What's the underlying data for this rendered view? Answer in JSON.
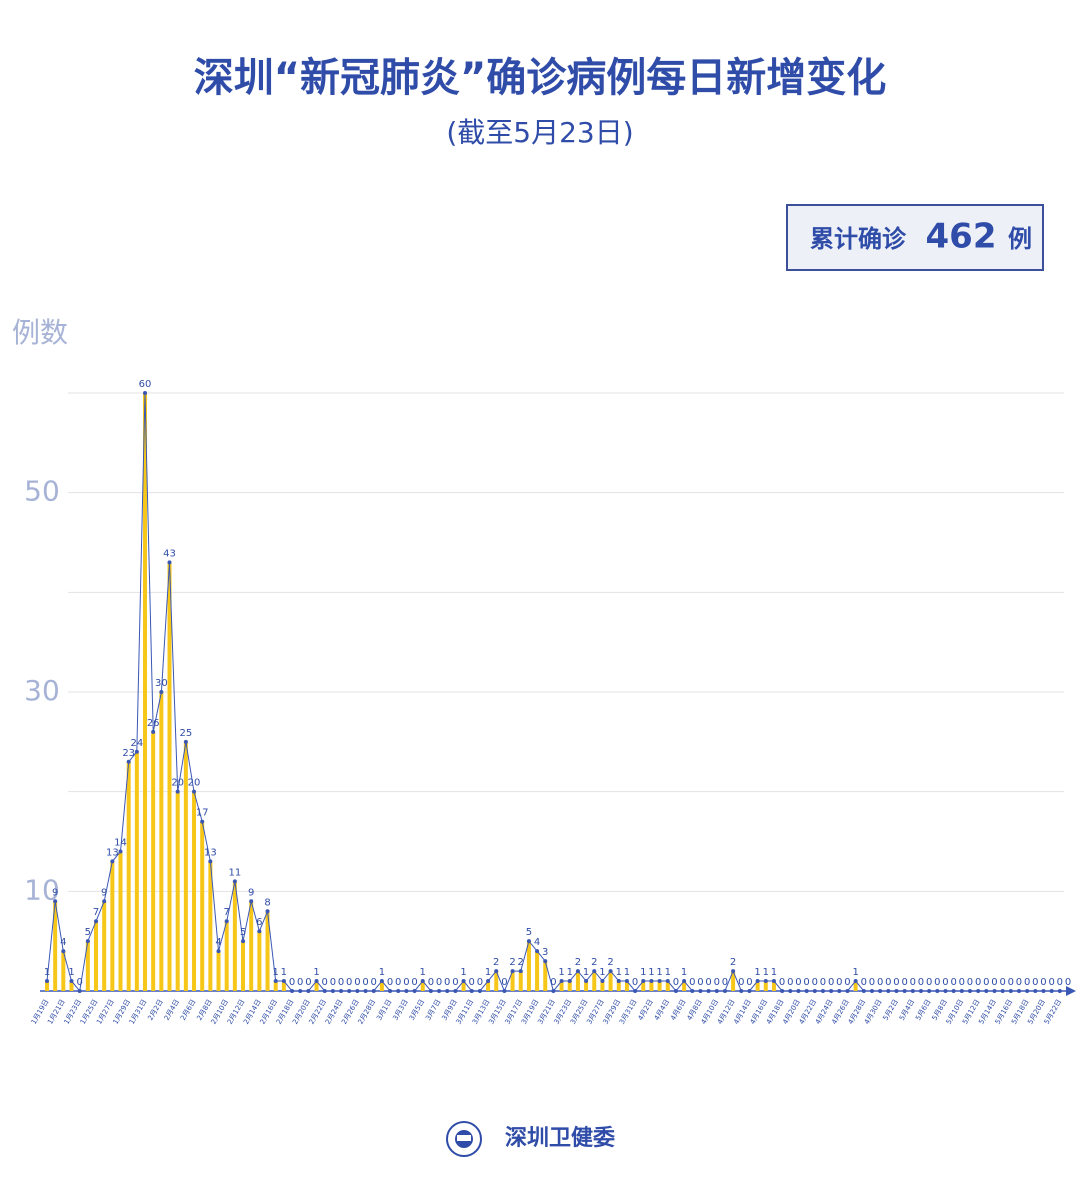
{
  "header": {
    "title": "深圳“新冠肺炎”确诊病例每日新增变化",
    "subtitle": "(截至5月23日)",
    "total_prefix": "累计确诊",
    "total": 462,
    "total_suffix": "例"
  },
  "chart_data": {
    "type": "bar",
    "ylabel": "例数",
    "color": "#f6c619",
    "line": true,
    "line_color": "#3a57b4",
    "value_label_color": "#2f4ca8",
    "categories": [
      "1月19日",
      null,
      "1月21日",
      null,
      "1月23日",
      null,
      "1月25日",
      null,
      "1月27日",
      null,
      "1月29日",
      null,
      "1月31日",
      null,
      "2月2日",
      null,
      "2月4日",
      null,
      "2月6日",
      null,
      "2月8日",
      null,
      "2月10日",
      null,
      "2月12日",
      null,
      "2月14日",
      null,
      "2月16日",
      null,
      "2月18日",
      null,
      "2月20日",
      null,
      "2月22日",
      null,
      "2月24日",
      null,
      "2月26日",
      null,
      "2月28日",
      null,
      "3月1日",
      null,
      "3月3日",
      null,
      "3月5日",
      null,
      "3月7日",
      null,
      "3月9日",
      null,
      "3月11日",
      null,
      "3月13日",
      null,
      "3月15日",
      null,
      "3月17日",
      null,
      "3月19日",
      null,
      "3月21日",
      null,
      "3月23日",
      null,
      "3月25日",
      null,
      "3月27日",
      null,
      "3月29日",
      null,
      "3月31日",
      null,
      "4月2日",
      null,
      "4月4日",
      null,
      "4月6日",
      null,
      "4月8日",
      null,
      "4月10日",
      null,
      "4月12日",
      null,
      "4月14日",
      null,
      "4月16日",
      null,
      "4月18日",
      null,
      "4月20日",
      null,
      "4月22日",
      null,
      "4月24日",
      null,
      "4月26日",
      null,
      "4月28日",
      null,
      "4月30日",
      null,
      "5月2日",
      null,
      "5月4日",
      null,
      "5月6日",
      null,
      "5月8日",
      null,
      "5月10日",
      null,
      "5月12日",
      null,
      "5月14日",
      null,
      "5月16日",
      null,
      "5月18日",
      null,
      "5月20日",
      null,
      "5月22日",
      null
    ],
    "values": [
      1,
      9,
      4,
      1,
      0,
      5,
      7,
      9,
      13,
      14,
      23,
      24,
      60,
      26,
      30,
      43,
      20,
      25,
      20,
      17,
      13,
      4,
      7,
      11,
      5,
      9,
      6,
      8,
      1,
      1,
      0,
      0,
      0,
      1,
      0,
      0,
      0,
      0,
      0,
      0,
      0,
      1,
      0,
      0,
      0,
      0,
      1,
      0,
      0,
      0,
      0,
      1,
      0,
      0,
      1,
      2,
      0,
      2,
      2,
      5,
      4,
      3,
      0,
      1,
      1,
      2,
      1,
      2,
      1,
      2,
      1,
      1,
      0,
      1,
      1,
      1,
      1,
      0,
      1,
      0,
      0,
      0,
      0,
      0,
      2,
      0,
      0,
      1,
      1,
      1,
      0,
      0,
      0,
      0,
      0,
      0,
      0,
      0,
      0,
      1,
      0,
      0,
      0,
      0,
      0,
      0,
      0,
      0,
      0,
      0,
      0,
      0,
      0,
      0,
      0,
      0,
      0,
      0,
      0,
      0,
      0,
      0,
      0,
      0,
      0,
      0
    ],
    "ylim": [
      0,
      60
    ],
    "yticks": [
      10,
      30,
      50
    ],
    "grid": [
      10,
      20,
      30,
      40,
      50,
      60
    ]
  },
  "footer": {
    "text": "深圳卫健委"
  }
}
